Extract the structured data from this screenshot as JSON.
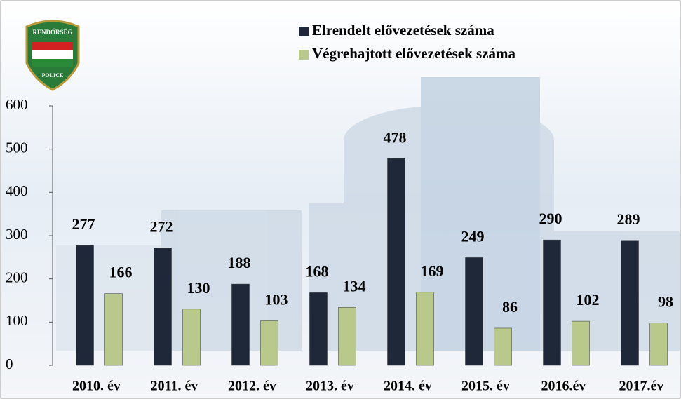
{
  "chart_data": {
    "type": "bar",
    "categories": [
      "2010. év",
      "2011. év",
      "2012. év",
      "2013. év",
      "2014. év",
      "2015. év",
      "2016.év",
      "2017.év"
    ],
    "series": [
      {
        "name": "Elrendelt elővezetések száma",
        "color": "#1e2838",
        "values": [
          277,
          272,
          188,
          168,
          478,
          249,
          290,
          289
        ]
      },
      {
        "name": "Végrehajtott elővezetések száma",
        "color": "#b9c98b",
        "values": [
          166,
          130,
          103,
          134,
          169,
          86,
          102,
          98
        ]
      }
    ],
    "ylim": [
      0,
      600
    ],
    "yticks": [
      0,
      100,
      200,
      300,
      400,
      500,
      600
    ],
    "logo": {
      "top": "RENDŐRSÉG",
      "bottom": "POLICE"
    }
  }
}
